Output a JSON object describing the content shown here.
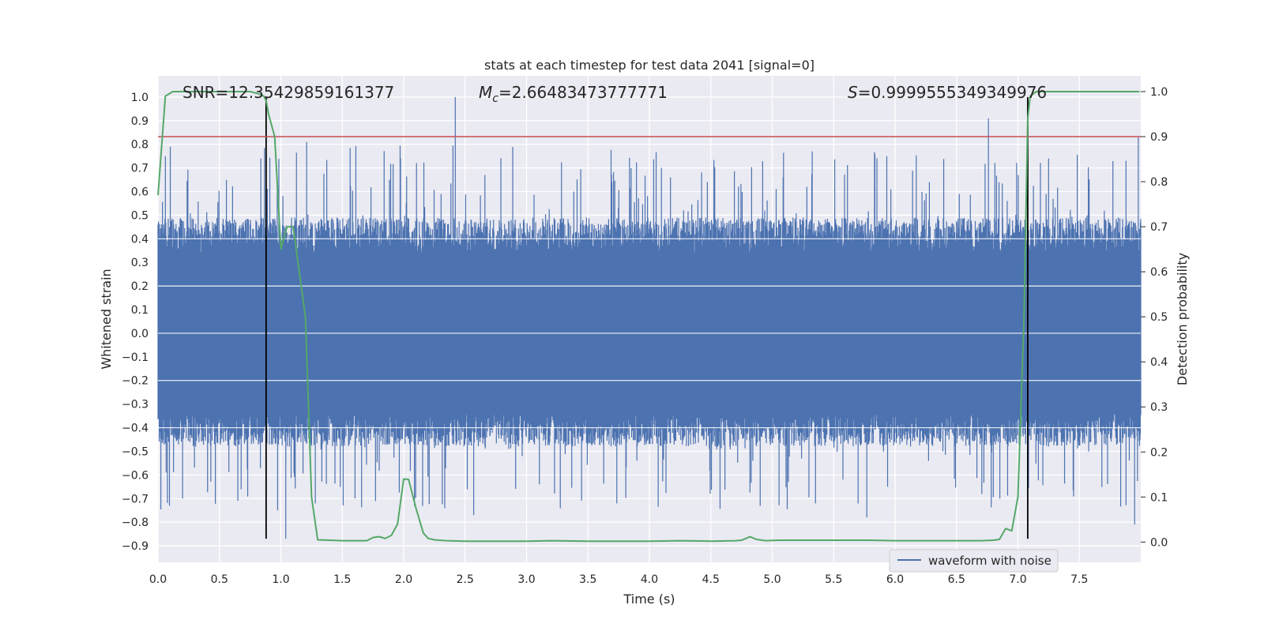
{
  "chart_data": {
    "type": "line",
    "title": "stats at each timestep for test data 2041 [signal=0]",
    "xlabel": "Time (s)",
    "ylabel": "Whitened strain",
    "y2label": "Detection probability",
    "xlim": [
      0.0,
      8.0
    ],
    "ylim": [
      -0.97,
      1.09
    ],
    "y2lim": [
      -0.045,
      1.035
    ],
    "x_ticks": [
      0.0,
      0.5,
      1.0,
      1.5,
      2.0,
      2.5,
      3.0,
      3.5,
      4.0,
      4.5,
      5.0,
      5.5,
      6.0,
      6.5,
      7.0,
      7.5
    ],
    "x_tick_labels": [
      "0.0",
      "0.5",
      "1.0",
      "1.5",
      "2.0",
      "2.5",
      "3.0",
      "3.5",
      "4.0",
      "4.5",
      "5.0",
      "5.5",
      "6.0",
      "6.5",
      "7.0",
      "7.5"
    ],
    "y_ticks": [
      -0.9,
      -0.8,
      -0.7,
      -0.6,
      -0.5,
      -0.4,
      -0.3,
      -0.2,
      -0.1,
      0.0,
      0.1,
      0.2,
      0.3,
      0.4,
      0.5,
      0.6,
      0.7,
      0.8,
      0.9,
      1.0
    ],
    "y_tick_labels": [
      "−0.9",
      "−0.8",
      "−0.7",
      "−0.6",
      "−0.5",
      "−0.4",
      "−0.3",
      "−0.2",
      "−0.1",
      "0.0",
      "0.1",
      "0.2",
      "0.3",
      "0.4",
      "0.5",
      "0.6",
      "0.7",
      "0.8",
      "0.9",
      "1.0"
    ],
    "y2_ticks": [
      0.0,
      0.1,
      0.2,
      0.3,
      0.4,
      0.5,
      0.6,
      0.7,
      0.8,
      0.9,
      1.0
    ],
    "y2_tick_labels": [
      "0.0",
      "0.1",
      "0.2",
      "0.3",
      "0.4",
      "0.5",
      "0.6",
      "0.7",
      "0.8",
      "0.9",
      "1.0"
    ],
    "grid": true,
    "legend_position": "lower-right",
    "annotations": {
      "snr": "SNR=12.35429859161377",
      "mc_symbol": "M",
      "mc_sub": "c",
      "mc_value": "=2.66483473777771",
      "s_symbol": "S",
      "s_value": "=0.9999555349349976"
    },
    "series": [
      {
        "name": "waveform with noise",
        "axis": "left",
        "color": "#4c72b0",
        "kind": "noise",
        "duration": 8.0,
        "core_amplitude": 0.34,
        "peak_max": 1.0,
        "trough_min": -0.87
      },
      {
        "axis": "right",
        "color": "#55a868",
        "x": [
          0.0,
          0.06,
          0.12,
          0.25,
          0.5,
          0.75,
          0.82,
          0.86,
          0.88,
          0.9,
          0.95,
          1.0,
          1.05,
          1.1,
          1.15,
          1.2,
          1.25,
          1.3,
          1.4,
          1.5,
          1.6,
          1.7,
          1.75,
          1.8,
          1.85,
          1.9,
          1.95,
          2.0,
          2.04,
          2.1,
          2.16,
          2.2,
          2.25,
          2.35,
          2.5,
          2.75,
          3.0,
          3.2,
          3.5,
          4.0,
          4.25,
          4.5,
          4.7,
          4.75,
          4.82,
          4.87,
          4.95,
          5.05,
          5.3,
          5.5,
          5.7,
          5.8,
          6.0,
          6.25,
          6.5,
          6.7,
          6.8,
          6.85,
          6.9,
          6.95,
          7.0,
          7.05,
          7.08,
          7.1,
          7.15,
          7.2,
          7.3,
          7.5,
          7.99
        ],
        "y": [
          0.77,
          0.99,
          1.0,
          1.0,
          1.0,
          1.0,
          0.995,
          0.99,
          0.98,
          0.95,
          0.9,
          0.65,
          0.7,
          0.7,
          0.6,
          0.5,
          0.1,
          0.005,
          0.004,
          0.003,
          0.003,
          0.003,
          0.01,
          0.012,
          0.008,
          0.015,
          0.04,
          0.14,
          0.139,
          0.075,
          0.02,
          0.008,
          0.005,
          0.003,
          0.002,
          0.002,
          0.002,
          0.003,
          0.002,
          0.002,
          0.003,
          0.002,
          0.003,
          0.004,
          0.012,
          0.006,
          0.003,
          0.004,
          0.004,
          0.004,
          0.004,
          0.004,
          0.003,
          0.003,
          0.003,
          0.003,
          0.004,
          0.006,
          0.03,
          0.025,
          0.1,
          0.5,
          0.94,
          0.99,
          1.0,
          1.0,
          1.0,
          1.0,
          1.0
        ]
      }
    ],
    "threshold": {
      "axis": "right",
      "value": 0.9,
      "color": "#c44e52"
    },
    "markers": {
      "x": [
        0.88,
        7.08
      ],
      "color": "#000000",
      "y_from": -0.87,
      "y_to": 1.0
    }
  }
}
